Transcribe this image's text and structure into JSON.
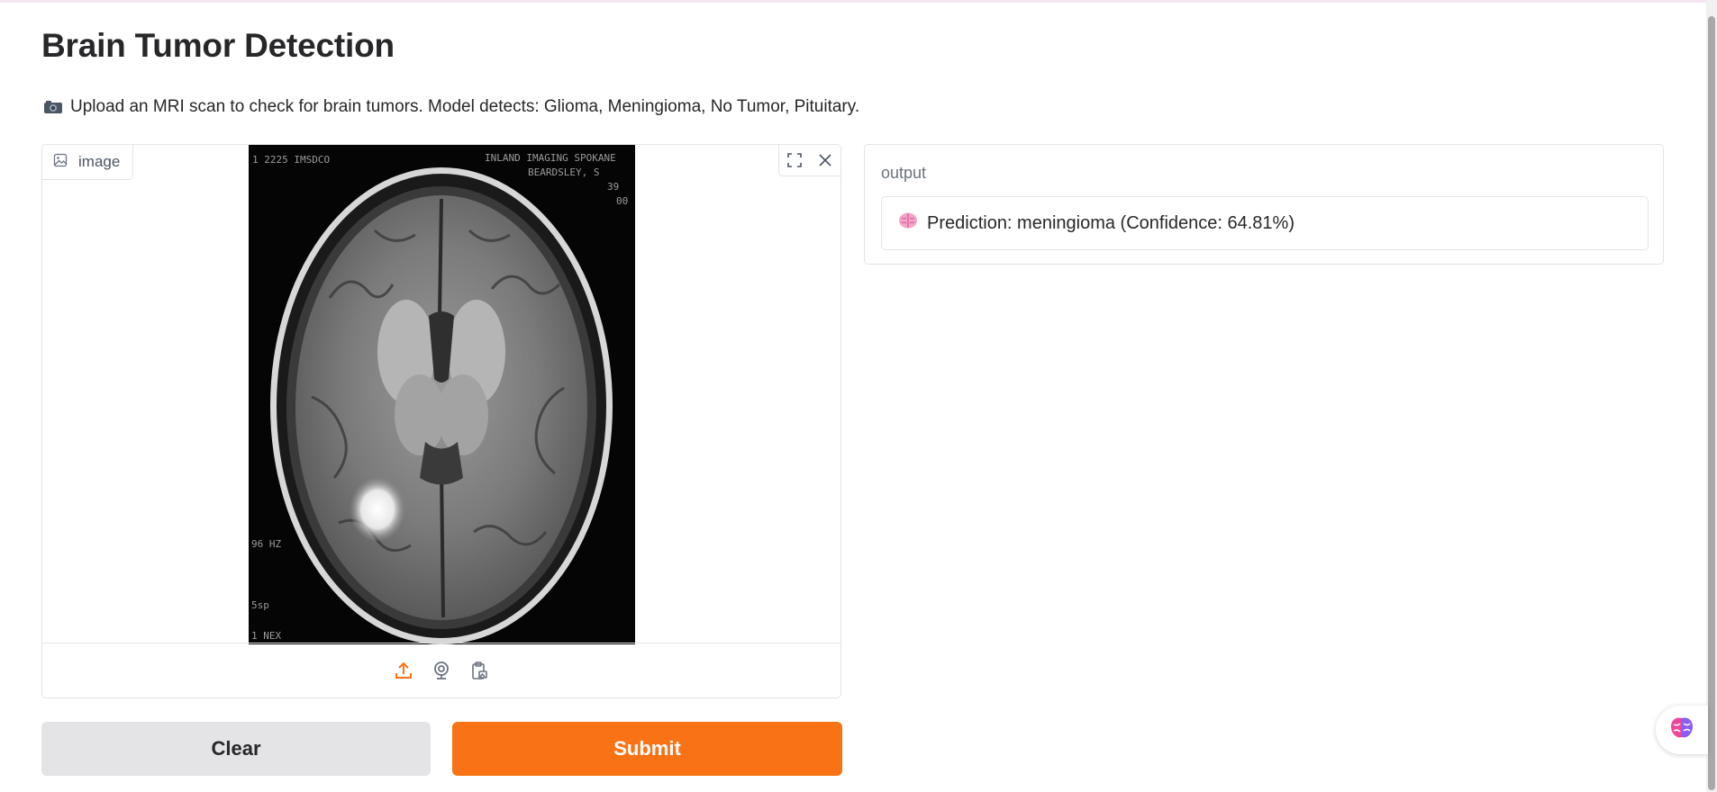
{
  "page": {
    "title": "Brain Tumor Detection",
    "description": "Upload an MRI scan to check for brain tumors. Model detects: Glioma, Meningioma, No Tumor, Pituitary."
  },
  "input": {
    "label": "image",
    "scan_text": {
      "top_left": "1 2225 IMSDCO",
      "top_right_1": "INLAND IMAGING SPOKANE",
      "top_right_2": "BEARDSLEY, S",
      "top_right_3": "39",
      "top_right_4": "00",
      "left_1": "96 HZ",
      "left_2": "5sp",
      "left_3": "1 NEX"
    },
    "tools": [
      "fullscreen-icon",
      "close-icon"
    ],
    "sources": [
      "upload-icon",
      "webcam-icon",
      "clipboard-icon"
    ]
  },
  "output": {
    "label": "output",
    "text": "Prediction: meningioma (Confidence: 64.81%)"
  },
  "buttons": {
    "clear": "Clear",
    "submit": "Submit"
  },
  "colors": {
    "accent": "#f97316",
    "secondary_button": "#e4e4e7",
    "border": "#e4e4e7"
  }
}
